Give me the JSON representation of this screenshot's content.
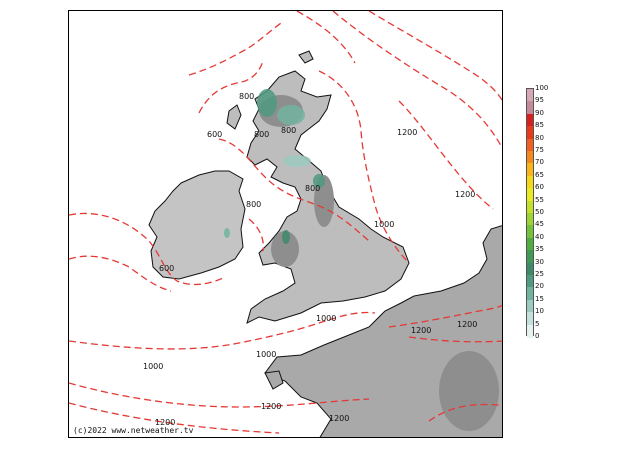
{
  "map": {
    "copyright": "(c)2022 www.netweather.tv",
    "contour_labels": [
      "800",
      "600",
      "800",
      "1200",
      "800",
      "600",
      "800",
      "1000",
      "1200",
      "800",
      "1000",
      "1000",
      "1000",
      "1200",
      "1200",
      "1200",
      "1200",
      "1200"
    ]
  },
  "legend": {
    "values": [
      "100",
      "95",
      "90",
      "85",
      "80",
      "75",
      "70",
      "65",
      "60",
      "55",
      "50",
      "45",
      "40",
      "35",
      "30",
      "25",
      "20",
      "15",
      "10",
      "5",
      "0"
    ],
    "colors": [
      "#ffffff",
      "#d4a8b4",
      "#c48a9a",
      "#d61f1f",
      "#e83a1a",
      "#f06020",
      "#f58a1c",
      "#f9b51a",
      "#f5d61a",
      "#e9ea22",
      "#c5e02a",
      "#9fd233",
      "#74c13a",
      "#4fae3d",
      "#3f9a55",
      "#3e8a68",
      "#4f9a80",
      "#72b3a0",
      "#9ccac0",
      "#c4e0dc",
      "#e6f2f0"
    ]
  }
}
